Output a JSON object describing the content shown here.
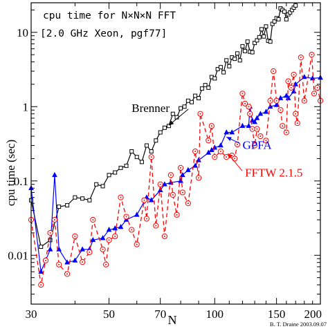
{
  "chart_data": {
    "type": "line",
    "title_lines": [
      "cpu time for N×N×N FFT",
      "[2.0 GHz Xeon, pgf77]"
    ],
    "xlabel": "N",
    "ylabel": "cpu time (sec)",
    "x_scale": "log",
    "y_scale": "log",
    "xlim": [
      30,
      200
    ],
    "ylim": [
      0.0022,
      25
    ],
    "x_ticks": [
      30,
      50,
      70,
      100,
      150,
      200
    ],
    "y_ticks": [
      0.01,
      0.1,
      1,
      10
    ],
    "credit": "B. T. Draine  2003.09.07",
    "series": [
      {
        "name": "Brenner",
        "color": "#000000",
        "dash": "solid",
        "marker": "square",
        "points": [
          [
            30,
            0.055
          ],
          [
            32,
            0.013
          ],
          [
            34,
            0.016
          ],
          [
            36,
            0.045
          ],
          [
            38,
            0.047
          ],
          [
            40,
            0.06
          ],
          [
            42,
            0.058
          ],
          [
            44,
            0.055
          ],
          [
            46,
            0.09
          ],
          [
            48,
            0.085
          ],
          [
            50,
            0.12
          ],
          [
            52,
            0.13
          ],
          [
            54,
            0.15
          ],
          [
            56,
            0.16
          ],
          [
            58,
            0.25
          ],
          [
            60,
            0.21
          ],
          [
            62,
            0.18
          ],
          [
            64,
            0.3
          ],
          [
            66,
            0.25
          ],
          [
            68,
            0.35
          ],
          [
            70,
            0.45
          ],
          [
            72,
            0.52
          ],
          [
            74,
            0.55
          ],
          [
            76,
            0.8
          ],
          [
            78,
            0.72
          ],
          [
            80,
            0.95
          ],
          [
            82,
            1.0
          ],
          [
            84,
            1.2
          ],
          [
            86,
            1.15
          ],
          [
            88,
            1.4
          ],
          [
            90,
            1.3
          ],
          [
            92,
            1.75
          ],
          [
            94,
            1.95
          ],
          [
            96,
            1.8
          ],
          [
            98,
            2.5
          ],
          [
            100,
            2.4
          ],
          [
            102,
            3.2
          ],
          [
            104,
            3.4
          ],
          [
            106,
            2.9
          ],
          [
            108,
            4.2
          ],
          [
            110,
            3.5
          ],
          [
            112,
            4.6
          ],
          [
            114,
            4.4
          ],
          [
            116,
            5.2
          ],
          [
            118,
            4.2
          ],
          [
            120,
            6.5
          ],
          [
            122,
            5.6
          ],
          [
            124,
            7.5
          ],
          [
            126,
            5.5
          ],
          [
            128,
            5.4
          ],
          [
            130,
            7.2
          ],
          [
            132,
            7.8
          ],
          [
            134,
            8.6
          ],
          [
            136,
            11.0
          ],
          [
            138,
            8.8
          ],
          [
            140,
            12.0
          ],
          [
            142,
            7.7
          ],
          [
            144,
            7.5
          ],
          [
            146,
            13.0
          ],
          [
            148,
            14.0
          ],
          [
            150,
            15.5
          ],
          [
            152,
            15.0
          ],
          [
            154,
            21.0
          ],
          [
            156,
            20.0
          ],
          [
            158,
            19.0
          ],
          [
            160,
            15.0
          ],
          [
            162,
            17.5
          ],
          [
            164,
            18.5
          ],
          [
            166,
            20.0
          ],
          [
            168,
            21.5
          ],
          [
            170,
            23.0
          ]
        ]
      },
      {
        "name": "GPFA",
        "color": "#0000ff",
        "dash": "solid",
        "marker": "triangle",
        "points": [
          [
            30,
            0.08
          ],
          [
            32,
            0.006
          ],
          [
            34,
            0.012
          ],
          [
            35,
            0.12
          ],
          [
            36,
            0.012
          ],
          [
            38,
            0.008
          ],
          [
            40,
            0.0085
          ],
          [
            42,
            0.012
          ],
          [
            44,
            0.012
          ],
          [
            45,
            0.016
          ],
          [
            48,
            0.017
          ],
          [
            50,
            0.022
          ],
          [
            52,
            0.023
          ],
          [
            54,
            0.024
          ],
          [
            56,
            0.03
          ],
          [
            60,
            0.035
          ],
          [
            64,
            0.06
          ],
          [
            66,
            0.055
          ],
          [
            70,
            0.075
          ],
          [
            72,
            0.09
          ],
          [
            75,
            0.095
          ],
          [
            80,
            0.1
          ],
          [
            81,
            0.12
          ],
          [
            84,
            0.14
          ],
          [
            88,
            0.16
          ],
          [
            90,
            0.19
          ],
          [
            96,
            0.24
          ],
          [
            98,
            0.26
          ],
          [
            100,
            0.28
          ],
          [
            104,
            0.3
          ],
          [
            108,
            0.45
          ],
          [
            112,
            0.45
          ],
          [
            120,
            0.55
          ],
          [
            125,
            0.55
          ],
          [
            126,
            1.0
          ],
          [
            128,
            0.65
          ],
          [
            130,
            0.62
          ],
          [
            132,
            0.7
          ],
          [
            135,
            0.8
          ],
          [
            140,
            0.85
          ],
          [
            144,
            1.0
          ],
          [
            150,
            1.05
          ],
          [
            154,
            1.3
          ],
          [
            160,
            1.4
          ],
          [
            162,
            1.3
          ],
          [
            168,
            1.6
          ],
          [
            170,
            2.0
          ],
          [
            180,
            2.5
          ],
          [
            190,
            2.4
          ],
          [
            200,
            2.45
          ]
        ]
      },
      {
        "name": "FFTW 2.1.5",
        "color": "#ff0000",
        "dash": "dashed",
        "marker": "circle",
        "points": [
          [
            30,
            0.03
          ],
          [
            32,
            0.004
          ],
          [
            33,
            0.0085
          ],
          [
            34,
            0.02
          ],
          [
            35,
            0.03
          ],
          [
            36,
            0.0075
          ],
          [
            38,
            0.0056
          ],
          [
            40,
            0.018
          ],
          [
            42,
            0.0081
          ],
          [
            44,
            0.011
          ],
          [
            45,
            0.03
          ],
          [
            48,
            0.012
          ],
          [
            49,
            0.0075
          ],
          [
            50,
            0.016
          ],
          [
            52,
            0.018
          ],
          [
            54,
            0.06
          ],
          [
            56,
            0.033
          ],
          [
            58,
            0.022
          ],
          [
            60,
            0.014
          ],
          [
            63,
            0.055
          ],
          [
            64,
            0.031
          ],
          [
            66,
            0.21
          ],
          [
            68,
            0.025
          ],
          [
            70,
            0.09
          ],
          [
            72,
            0.018
          ],
          [
            75,
            0.12
          ],
          [
            76,
            0.065
          ],
          [
            78,
            0.035
          ],
          [
            80,
            0.15
          ],
          [
            81,
            0.07
          ],
          [
            84,
            0.05
          ],
          [
            88,
            0.25
          ],
          [
            90,
            0.11
          ],
          [
            91,
            0.8
          ],
          [
            96,
            0.35
          ],
          [
            98,
            0.55
          ],
          [
            100,
            0.21
          ],
          [
            104,
            0.25
          ],
          [
            108,
            0.21
          ],
          [
            112,
            0.22
          ],
          [
            114,
            0.2
          ],
          [
            116,
            0.31
          ],
          [
            120,
            1.5
          ],
          [
            122,
            1.1
          ],
          [
            125,
            1.0
          ],
          [
            126,
            0.8
          ],
          [
            128,
            0.5
          ],
          [
            130,
            0.3
          ],
          [
            132,
            0.5
          ],
          [
            135,
            0.4
          ],
          [
            140,
            0.35
          ],
          [
            144,
            1.2
          ],
          [
            147,
            3.0
          ],
          [
            150,
            1.2
          ],
          [
            154,
            0.9
          ],
          [
            156,
            0.55
          ],
          [
            160,
            0.45
          ],
          [
            162,
            2.2
          ],
          [
            165,
            1.8
          ],
          [
            168,
            2.7
          ],
          [
            170,
            0.8
          ],
          [
            172,
            0.6
          ],
          [
            176,
            4.6
          ],
          [
            180,
            1.2
          ],
          [
            189,
            5.0
          ],
          [
            192,
            1.5
          ],
          [
            196,
            1.8
          ],
          [
            200,
            1.2
          ]
        ]
      }
    ],
    "annotations": [
      {
        "text": "Brenner",
        "series": "Brenner",
        "arrow_to": [
          74,
          0.56
        ],
        "text_at": [
          58,
          0.85
        ],
        "color": "#000000"
      },
      {
        "text": "GPFA",
        "series": "GPFA",
        "arrow_to": [
          108,
          0.39
        ],
        "text_at": [
          120,
          0.27
        ],
        "color": "#0000ff"
      },
      {
        "text": "FFTW 2.1.5",
        "series": "FFTW 2.1.5",
        "arrow_to": [
          109,
          0.235
        ],
        "text_at": [
          122,
          0.115
        ],
        "color": "#ff0000"
      }
    ]
  }
}
